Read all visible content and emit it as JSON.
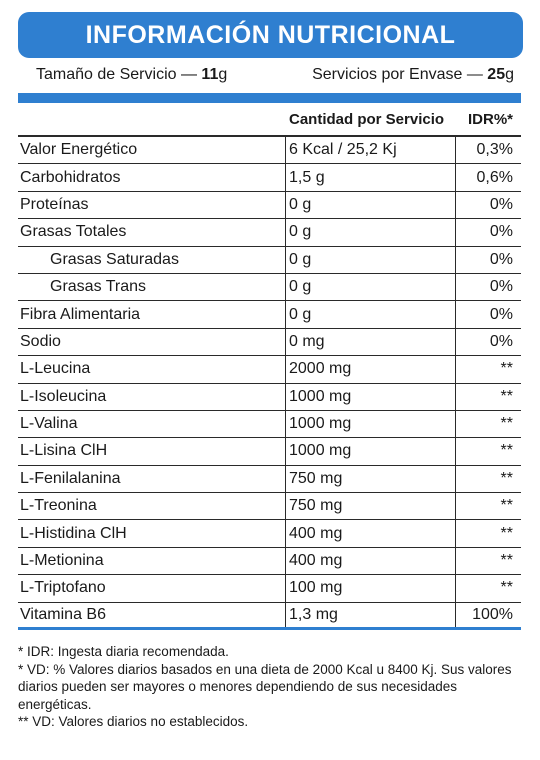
{
  "header": {
    "title": "INFORMACIÓN NUTRICIONAL"
  },
  "serving": {
    "size_label": "Tamaño de Servicio —",
    "size_value": "11",
    "size_unit": "g",
    "per_container_label": "Servicios por Envase —",
    "per_container_value": "25",
    "per_container_unit": "g"
  },
  "table": {
    "col_amount": "Cantidad por Servicio",
    "col_idr": "IDR%*",
    "rows": [
      {
        "name": "Valor Energético",
        "amount": "6 Kcal / 25,2 Kj",
        "idr": "0,3%"
      },
      {
        "name": "Carbohidratos",
        "amount": "1,5 g",
        "idr": "0,6%"
      },
      {
        "name": "Proteínas",
        "amount": "0 g",
        "idr": "0%"
      },
      {
        "name": "Grasas Totales",
        "amount": "0 g",
        "idr": "0%"
      },
      {
        "name": "Grasas Saturadas",
        "amount": "0 g",
        "idr": "0%"
      },
      {
        "name": "Grasas Trans",
        "amount": "0 g",
        "idr": "0%"
      },
      {
        "name": "Fibra Alimentaria",
        "amount": "0 g",
        "idr": "0%"
      },
      {
        "name": "Sodio",
        "amount": "0 mg",
        "idr": "0%"
      },
      {
        "name": "L-Leucina",
        "amount": "2000 mg",
        "idr": "**"
      },
      {
        "name": "L-Isoleucina",
        "amount": "1000 mg",
        "idr": "**"
      },
      {
        "name": "L-Valina",
        "amount": "1000 mg",
        "idr": "**"
      },
      {
        "name": "L-Lisina ClH",
        "amount": "1000 mg",
        "idr": "**"
      },
      {
        "name": "L-Fenilalanina",
        "amount": "750 mg",
        "idr": "**"
      },
      {
        "name": "L-Treonina",
        "amount": "750 mg",
        "idr": "**"
      },
      {
        "name": "L-Histidina ClH",
        "amount": "400 mg",
        "idr": "**"
      },
      {
        "name": "L-Metionina",
        "amount": "400 mg",
        "idr": "**"
      },
      {
        "name": "L-Triptofano",
        "amount": "100 mg",
        "idr": "**"
      },
      {
        "name": "Vitamina B6",
        "amount": "1,3 mg",
        "idr": "100%"
      }
    ]
  },
  "footnotes": [
    "* IDR: Ingesta diaria recomendada.",
    "* VD: % Valores diarios basados en una dieta de 2000 Kcal u 8400 Kj. Sus valores diarios pueden ser mayores o menores dependiendo de sus necesidades energéticas.",
    "** VD: Valores diarios no establecidos."
  ],
  "colors": {
    "accent": "#2f7fd0",
    "text": "#1a1a1a",
    "background": "#ffffff"
  }
}
